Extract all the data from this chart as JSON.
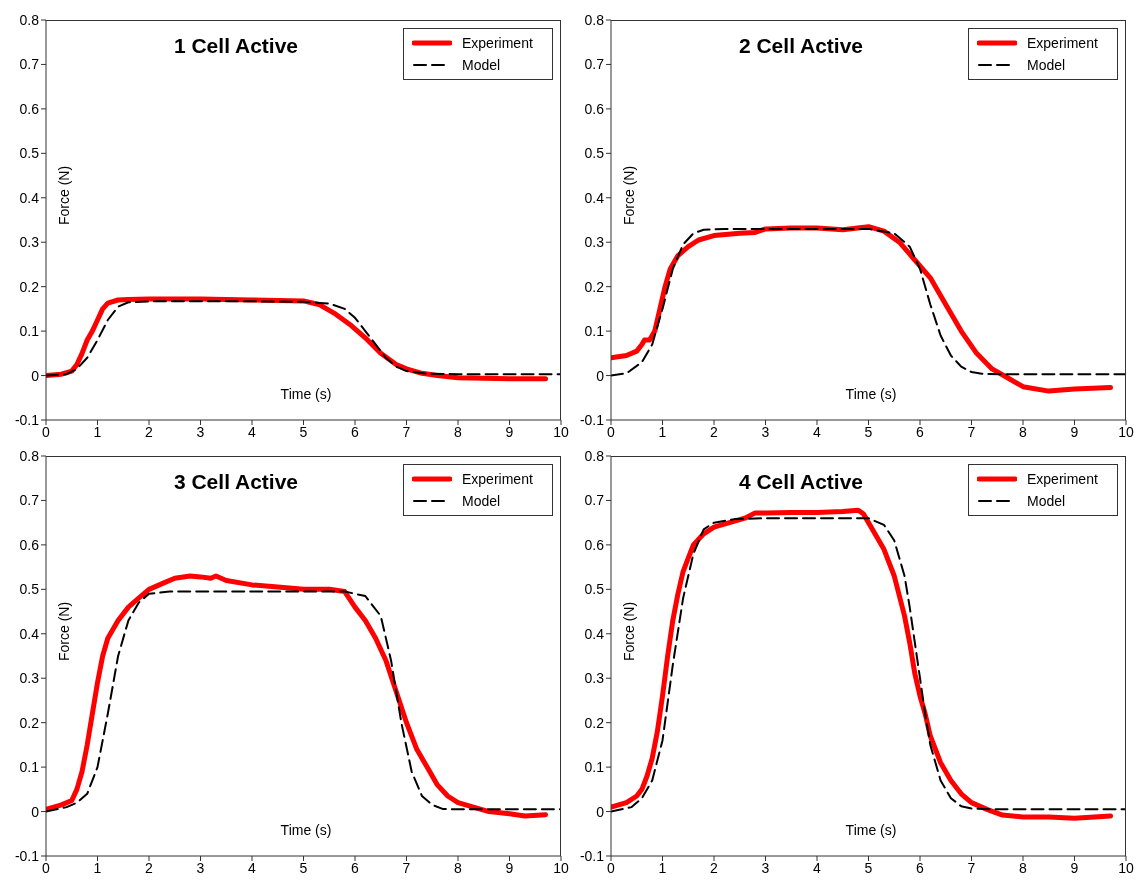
{
  "chart_data": [
    {
      "type": "line",
      "title": "1 Cell Active",
      "xlabel": "Time (s)",
      "ylabel": "Force (N)",
      "xlim": [
        0,
        10
      ],
      "xticks": [
        0,
        1,
        2,
        3,
        4,
        5,
        6,
        7,
        8,
        9,
        10
      ],
      "ylim": [
        -0.1,
        0.8
      ],
      "yticks": [
        -0.1,
        0,
        0.1,
        0.2,
        0.3,
        0.4,
        0.5,
        0.6,
        0.7,
        0.8
      ],
      "legend": "top right",
      "grid": false,
      "marker": "none",
      "series": [
        {
          "name": "Experiment",
          "color": "#ff0000",
          "line_style": "solid",
          "x": [
            0,
            0.3,
            0.5,
            0.6,
            0.7,
            0.8,
            0.9,
            1.0,
            1.1,
            1.2,
            1.4,
            1.6,
            2,
            3,
            4,
            5,
            5.3,
            5.6,
            5.9,
            6.2,
            6.5,
            6.8,
            7.0,
            7.3,
            7.6,
            8,
            8.5,
            9,
            9.7
          ],
          "values": [
            0,
            0.003,
            0.01,
            0.025,
            0.05,
            0.08,
            0.1,
            0.125,
            0.15,
            0.163,
            0.17,
            0.171,
            0.172,
            0.172,
            0.17,
            0.168,
            0.16,
            0.14,
            0.115,
            0.085,
            0.05,
            0.025,
            0.015,
            0.005,
            0,
            -0.005,
            -0.006,
            -0.007,
            -0.007
          ]
        },
        {
          "name": "Model",
          "color": "#000000",
          "line_style": "dashed",
          "x": [
            0,
            0.4,
            0.6,
            0.8,
            1.0,
            1.2,
            1.4,
            1.6,
            2,
            3,
            4,
            5,
            5.5,
            5.8,
            6.0,
            6.2,
            6.4,
            6.6,
            6.8,
            7.0,
            7.4,
            8,
            10
          ],
          "values": [
            0,
            0.003,
            0.015,
            0.04,
            0.08,
            0.125,
            0.155,
            0.165,
            0.167,
            0.167,
            0.167,
            0.166,
            0.162,
            0.15,
            0.13,
            0.1,
            0.07,
            0.04,
            0.02,
            0.01,
            0.004,
            0.003,
            0.003
          ]
        }
      ]
    },
    {
      "type": "line",
      "title": "2 Cell Active",
      "xlabel": "Time (s)",
      "ylabel": "Force (N)",
      "xlim": [
        0,
        10
      ],
      "xticks": [
        0,
        1,
        2,
        3,
        4,
        5,
        6,
        7,
        8,
        9,
        10
      ],
      "ylim": [
        -0.1,
        0.8
      ],
      "yticks": [
        -0.1,
        0,
        0.1,
        0.2,
        0.3,
        0.4,
        0.5,
        0.6,
        0.7,
        0.8
      ],
      "legend": "top right",
      "grid": false,
      "marker": "none",
      "series": [
        {
          "name": "Experiment",
          "color": "#ff0000",
          "line_style": "solid",
          "x": [
            0,
            0.3,
            0.5,
            0.6,
            0.65,
            0.75,
            0.85,
            0.95,
            1.05,
            1.15,
            1.3,
            1.5,
            1.7,
            2,
            2.5,
            2.8,
            3,
            3.5,
            4,
            4.5,
            5,
            5.3,
            5.6,
            5.9,
            6.2,
            6.5,
            6.8,
            7.1,
            7.4,
            7.7,
            8,
            8.5,
            9,
            9.7
          ],
          "values": [
            0.04,
            0.045,
            0.055,
            0.07,
            0.08,
            0.08,
            0.1,
            0.15,
            0.2,
            0.24,
            0.27,
            0.29,
            0.305,
            0.315,
            0.32,
            0.322,
            0.33,
            0.332,
            0.332,
            0.328,
            0.335,
            0.325,
            0.3,
            0.26,
            0.22,
            0.16,
            0.1,
            0.05,
            0.015,
            -0.005,
            -0.025,
            -0.035,
            -0.03,
            -0.027
          ]
        },
        {
          "name": "Model",
          "color": "#000000",
          "line_style": "dashed",
          "x": [
            0,
            0.3,
            0.6,
            0.8,
            1.0,
            1.2,
            1.4,
            1.6,
            1.8,
            2.2,
            3,
            4,
            5,
            5.5,
            5.8,
            6.0,
            6.2,
            6.4,
            6.6,
            6.8,
            7.0,
            7.2,
            7.6,
            8,
            10
          ],
          "values": [
            0,
            0.005,
            0.03,
            0.07,
            0.15,
            0.24,
            0.295,
            0.32,
            0.328,
            0.33,
            0.33,
            0.33,
            0.33,
            0.32,
            0.29,
            0.24,
            0.16,
            0.09,
            0.045,
            0.02,
            0.008,
            0.004,
            0.003,
            0.003,
            0.003
          ]
        }
      ]
    },
    {
      "type": "line",
      "title": "3 Cell Active",
      "xlabel": "Time (s)",
      "ylabel": "Force (N)",
      "xlim": [
        0,
        10
      ],
      "xticks": [
        0,
        1,
        2,
        3,
        4,
        5,
        6,
        7,
        8,
        9,
        10
      ],
      "ylim": [
        -0.1,
        0.8
      ],
      "yticks": [
        -0.1,
        0,
        0.1,
        0.2,
        0.3,
        0.4,
        0.5,
        0.6,
        0.7,
        0.8
      ],
      "legend": "top right",
      "grid": false,
      "marker": "none",
      "series": [
        {
          "name": "Experiment",
          "color": "#ff0000",
          "line_style": "solid",
          "x": [
            0,
            0.3,
            0.5,
            0.6,
            0.7,
            0.8,
            0.9,
            1.0,
            1.1,
            1.2,
            1.4,
            1.6,
            1.8,
            2,
            2.3,
            2.5,
            2.8,
            3,
            3.2,
            3.3,
            3.5,
            4,
            4.5,
            5,
            5.5,
            5.8,
            6.0,
            6.2,
            6.4,
            6.6,
            6.8,
            7,
            7.2,
            7.4,
            7.6,
            7.8,
            8,
            8.3,
            8.6,
            9,
            9.3,
            9.7
          ],
          "values": [
            0.005,
            0.015,
            0.025,
            0.05,
            0.09,
            0.15,
            0.22,
            0.29,
            0.35,
            0.39,
            0.43,
            0.46,
            0.48,
            0.5,
            0.515,
            0.525,
            0.53,
            0.528,
            0.525,
            0.53,
            0.52,
            0.51,
            0.505,
            0.5,
            0.5,
            0.495,
            0.46,
            0.43,
            0.39,
            0.34,
            0.27,
            0.2,
            0.14,
            0.1,
            0.06,
            0.035,
            0.02,
            0.01,
            0.0,
            -0.005,
            -0.01,
            -0.007
          ]
        },
        {
          "name": "Model",
          "color": "#000000",
          "line_style": "dashed",
          "x": [
            0,
            0.4,
            0.6,
            0.8,
            1.0,
            1.2,
            1.4,
            1.6,
            1.8,
            2.0,
            2.4,
            3,
            4,
            5,
            5.8,
            6.2,
            6.5,
            6.7,
            6.9,
            7.1,
            7.3,
            7.5,
            7.7,
            8,
            10
          ],
          "values": [
            0,
            0.01,
            0.02,
            0.04,
            0.1,
            0.22,
            0.35,
            0.43,
            0.47,
            0.49,
            0.495,
            0.495,
            0.495,
            0.495,
            0.495,
            0.485,
            0.44,
            0.34,
            0.2,
            0.09,
            0.035,
            0.015,
            0.006,
            0.005,
            0.005
          ]
        }
      ]
    },
    {
      "type": "line",
      "title": "4 Cell Active",
      "xlabel": "Time (s)",
      "ylabel": "Force (N)",
      "xlim": [
        0,
        10
      ],
      "xticks": [
        0,
        1,
        2,
        3,
        4,
        5,
        6,
        7,
        8,
        9,
        10
      ],
      "ylim": [
        -0.1,
        0.8
      ],
      "yticks": [
        -0.1,
        0,
        0.1,
        0.2,
        0.3,
        0.4,
        0.5,
        0.6,
        0.7,
        0.8
      ],
      "legend": "top right",
      "grid": false,
      "marker": "none",
      "series": [
        {
          "name": "Experiment",
          "color": "#ff0000",
          "line_style": "solid",
          "x": [
            0,
            0.3,
            0.5,
            0.6,
            0.7,
            0.8,
            0.9,
            1.0,
            1.1,
            1.2,
            1.3,
            1.4,
            1.5,
            1.6,
            1.8,
            2,
            2.3,
            2.6,
            2.8,
            3,
            3.5,
            4,
            4.5,
            4.8,
            4.9,
            5.1,
            5.3,
            5.5,
            5.7,
            5.8,
            5.9,
            6.0,
            6.1,
            6.2,
            6.4,
            6.6,
            6.8,
            7,
            7.3,
            7.6,
            8,
            8.5,
            9,
            9.7
          ],
          "values": [
            0.01,
            0.02,
            0.035,
            0.05,
            0.08,
            0.12,
            0.18,
            0.26,
            0.35,
            0.43,
            0.49,
            0.54,
            0.57,
            0.6,
            0.625,
            0.64,
            0.65,
            0.66,
            0.672,
            0.672,
            0.673,
            0.673,
            0.675,
            0.678,
            0.67,
            0.63,
            0.59,
            0.53,
            0.44,
            0.38,
            0.31,
            0.26,
            0.22,
            0.17,
            0.11,
            0.07,
            0.04,
            0.02,
            0.005,
            -0.008,
            -0.012,
            -0.012,
            -0.015,
            -0.01
          ]
        },
        {
          "name": "Model",
          "color": "#000000",
          "line_style": "dashed",
          "x": [
            0,
            0.4,
            0.6,
            0.8,
            1.0,
            1.2,
            1.4,
            1.6,
            1.8,
            2.0,
            2.4,
            3,
            4,
            5,
            5.3,
            5.5,
            5.7,
            5.8,
            5.9,
            6.0,
            6.1,
            6.2,
            6.4,
            6.6,
            6.8,
            7.0,
            7.4,
            8,
            10
          ],
          "values": [
            0,
            0.01,
            0.03,
            0.07,
            0.16,
            0.33,
            0.48,
            0.58,
            0.635,
            0.65,
            0.658,
            0.66,
            0.66,
            0.66,
            0.645,
            0.61,
            0.53,
            0.46,
            0.38,
            0.3,
            0.22,
            0.15,
            0.07,
            0.03,
            0.012,
            0.007,
            0.005,
            0.005,
            0.005
          ]
        }
      ]
    }
  ]
}
